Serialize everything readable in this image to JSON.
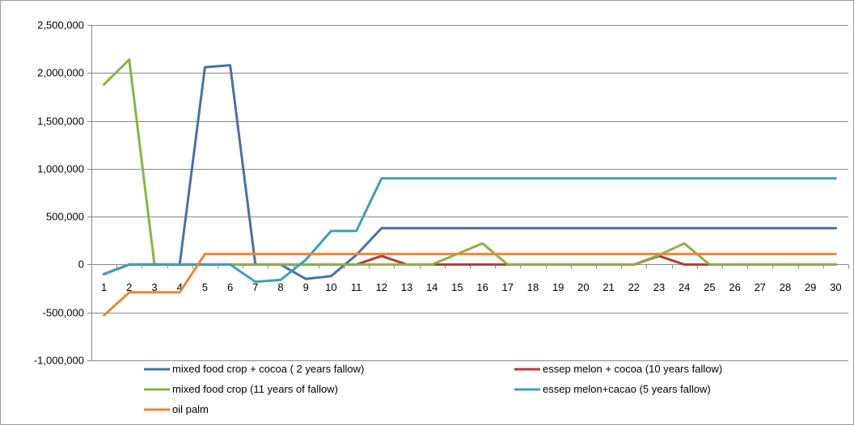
{
  "chart_data": {
    "type": "line",
    "title": "",
    "xlabel": "",
    "ylabel": "",
    "x": [
      1,
      2,
      3,
      4,
      5,
      6,
      7,
      8,
      9,
      10,
      11,
      12,
      13,
      14,
      15,
      16,
      17,
      18,
      19,
      20,
      21,
      22,
      23,
      24,
      25,
      26,
      27,
      28,
      29,
      30
    ],
    "ylim": [
      -1000000,
      2500000
    ],
    "y_ticks": [
      -1000000,
      -500000,
      0,
      500000,
      1000000,
      1500000,
      2000000,
      2500000
    ],
    "y_tick_labels": [
      "-1,000,000",
      "-500,000",
      "0",
      "500,000",
      "1,000,000",
      "1,500,000",
      "2,000,000",
      "2,500,000"
    ],
    "grid": "horizontal",
    "legend_position": "bottom",
    "series": [
      {
        "name": "mixed food crop + cocoa ( 2 years fallow)",
        "color": "#4a6fa5",
        "values": [
          -100000,
          0,
          0,
          0,
          2060000,
          2080000,
          0,
          0,
          -150000,
          -120000,
          100000,
          380000,
          380000,
          380000,
          380000,
          380000,
          380000,
          380000,
          380000,
          380000,
          380000,
          380000,
          380000,
          380000,
          380000,
          380000,
          380000,
          380000,
          380000,
          380000
        ]
      },
      {
        "name": "essep melon + cocoa (10 years fallow)",
        "color": "#b03c3a",
        "values": [
          -100000,
          0,
          0,
          0,
          0,
          0,
          0,
          0,
          0,
          0,
          0,
          90000,
          0,
          0,
          0,
          0,
          0,
          0,
          0,
          0,
          0,
          0,
          90000,
          0,
          0,
          0,
          0,
          0,
          0,
          0
        ]
      },
      {
        "name": "mixed food crop (11 years of fallow)",
        "color": "#8db04a",
        "values": [
          1880000,
          2140000,
          0,
          0,
          0,
          0,
          0,
          0,
          0,
          0,
          0,
          0,
          0,
          0,
          110000,
          220000,
          0,
          0,
          0,
          0,
          0,
          0,
          100000,
          220000,
          0,
          0,
          0,
          0,
          0,
          0
        ]
      },
      {
        "name": "essep melon+cacao (5 years fallow)",
        "color": "#3f9fb5",
        "values": [
          -100000,
          0,
          0,
          0,
          0,
          0,
          -180000,
          -160000,
          50000,
          350000,
          350000,
          900000,
          900000,
          900000,
          900000,
          900000,
          900000,
          900000,
          900000,
          900000,
          900000,
          900000,
          900000,
          900000,
          900000,
          900000,
          900000,
          900000,
          900000,
          900000
        ]
      },
      {
        "name": "oil palm",
        "color": "#e8873a",
        "values": [
          -530000,
          -290000,
          -290000,
          -290000,
          110000,
          110000,
          110000,
          110000,
          110000,
          110000,
          110000,
          110000,
          110000,
          110000,
          110000,
          110000,
          110000,
          110000,
          110000,
          110000,
          110000,
          110000,
          110000,
          110000,
          110000,
          110000,
          110000,
          110000,
          110000,
          110000
        ]
      }
    ]
  }
}
